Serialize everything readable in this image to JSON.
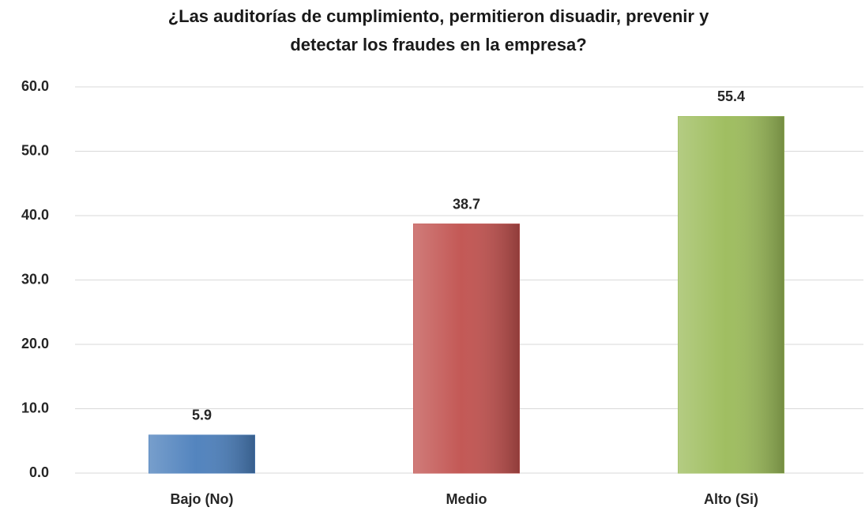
{
  "chart_data": {
    "type": "bar",
    "title": [
      "¿Las auditorías de cumplimiento, permitieron disuadir, prevenir y",
      "detectar los fraudes en la empresa?"
    ],
    "categories": [
      "Bajo (No)",
      "Medio",
      "Alto (Si)"
    ],
    "values": [
      5.9,
      38.7,
      55.4
    ],
    "colors": [
      "#4a7ebb",
      "#c0504d",
      "#9bbb59"
    ],
    "ylim": [
      0,
      60
    ],
    "yticks": [
      {
        "value": 0,
        "label": "0.0"
      },
      {
        "value": 10,
        "label": "10.0"
      },
      {
        "value": 20,
        "label": "20.0"
      },
      {
        "value": 30,
        "label": "30.0"
      },
      {
        "value": 40,
        "label": "40.0"
      },
      {
        "value": 50,
        "label": "50.0"
      },
      {
        "value": 60,
        "label": "60.0"
      }
    ],
    "grid": true
  }
}
